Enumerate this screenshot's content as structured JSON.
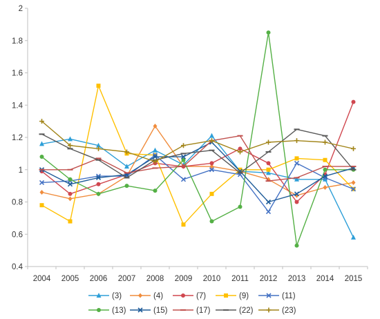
{
  "chart_data": {
    "type": "line",
    "x": [
      "2004",
      "2005",
      "2006",
      "2007",
      "2008",
      "2009",
      "2010",
      "2011",
      "2012",
      "2013",
      "2014",
      "2015"
    ],
    "ylim": [
      0.4,
      2
    ],
    "y_ticks": [
      "0.4",
      "0.6",
      "0.8",
      "1",
      "1.2",
      "1.4",
      "1.6",
      "1.8",
      "2"
    ],
    "grid": false,
    "legend_position": "bottom",
    "series": [
      {
        "name": "(3)",
        "color": "#2e9fd8",
        "marker": "triangle",
        "values": [
          1.16,
          1.19,
          1.15,
          1.02,
          1.12,
          1.03,
          1.21,
          0.99,
          0.98,
          0.94,
          0.94,
          0.58
        ]
      },
      {
        "name": "(4)",
        "color": "#f08c3c",
        "marker": "diamond",
        "values": [
          0.86,
          0.82,
          0.85,
          0.96,
          1.27,
          1.02,
          1.02,
          0.99,
          0.94,
          0.84,
          0.89,
          0.92
        ]
      },
      {
        "name": "(7)",
        "color": "#d0474f",
        "marker": "circle",
        "values": [
          0.99,
          0.85,
          0.91,
          0.97,
          1.04,
          1.02,
          1.04,
          1.13,
          1.04,
          0.8,
          0.97,
          1.42
        ]
      },
      {
        "name": "(9)",
        "color": "#ffc000",
        "marker": "square",
        "values": [
          0.78,
          0.68,
          1.52,
          1.1,
          1.09,
          0.66,
          0.85,
          1.0,
          1.0,
          1.07,
          1.06,
          0.88
        ]
      },
      {
        "name": "(11)",
        "color": "#4472c4",
        "marker": "x",
        "values": [
          0.92,
          0.93,
          0.96,
          0.96,
          1.09,
          0.94,
          1.0,
          0.97,
          0.74,
          1.04,
          0.95,
          0.88
        ]
      },
      {
        "name": "(13)",
        "color": "#54b045",
        "marker": "circle",
        "values": [
          1.08,
          0.94,
          0.85,
          0.9,
          0.87,
          1.06,
          0.68,
          0.77,
          1.85,
          0.53,
          1.0,
          1.0
        ]
      },
      {
        "name": "(15)",
        "color": "#1f5c99",
        "marker": "x",
        "values": [
          1.0,
          0.91,
          0.95,
          0.97,
          1.08,
          1.08,
          1.17,
          0.99,
          0.8,
          0.85,
          0.96,
          1.01
        ]
      },
      {
        "name": "(17)",
        "color": "#c0504d",
        "marker": "dash",
        "values": [
          1.0,
          1.0,
          1.07,
          0.98,
          1.01,
          1.02,
          1.18,
          1.21,
          0.93,
          0.95,
          1.02,
          1.02
        ]
      },
      {
        "name": "(22)",
        "color": "#595959",
        "marker": "dash",
        "values": [
          1.22,
          1.13,
          1.06,
          0.95,
          1.06,
          1.1,
          1.12,
          0.98,
          1.11,
          1.25,
          1.21,
          1.0
        ]
      },
      {
        "name": "(23)",
        "color": "#a18418",
        "marker": "plus",
        "values": [
          1.3,
          1.15,
          1.13,
          1.11,
          1.05,
          1.15,
          1.18,
          1.11,
          1.17,
          1.18,
          1.17,
          1.13
        ]
      }
    ]
  }
}
